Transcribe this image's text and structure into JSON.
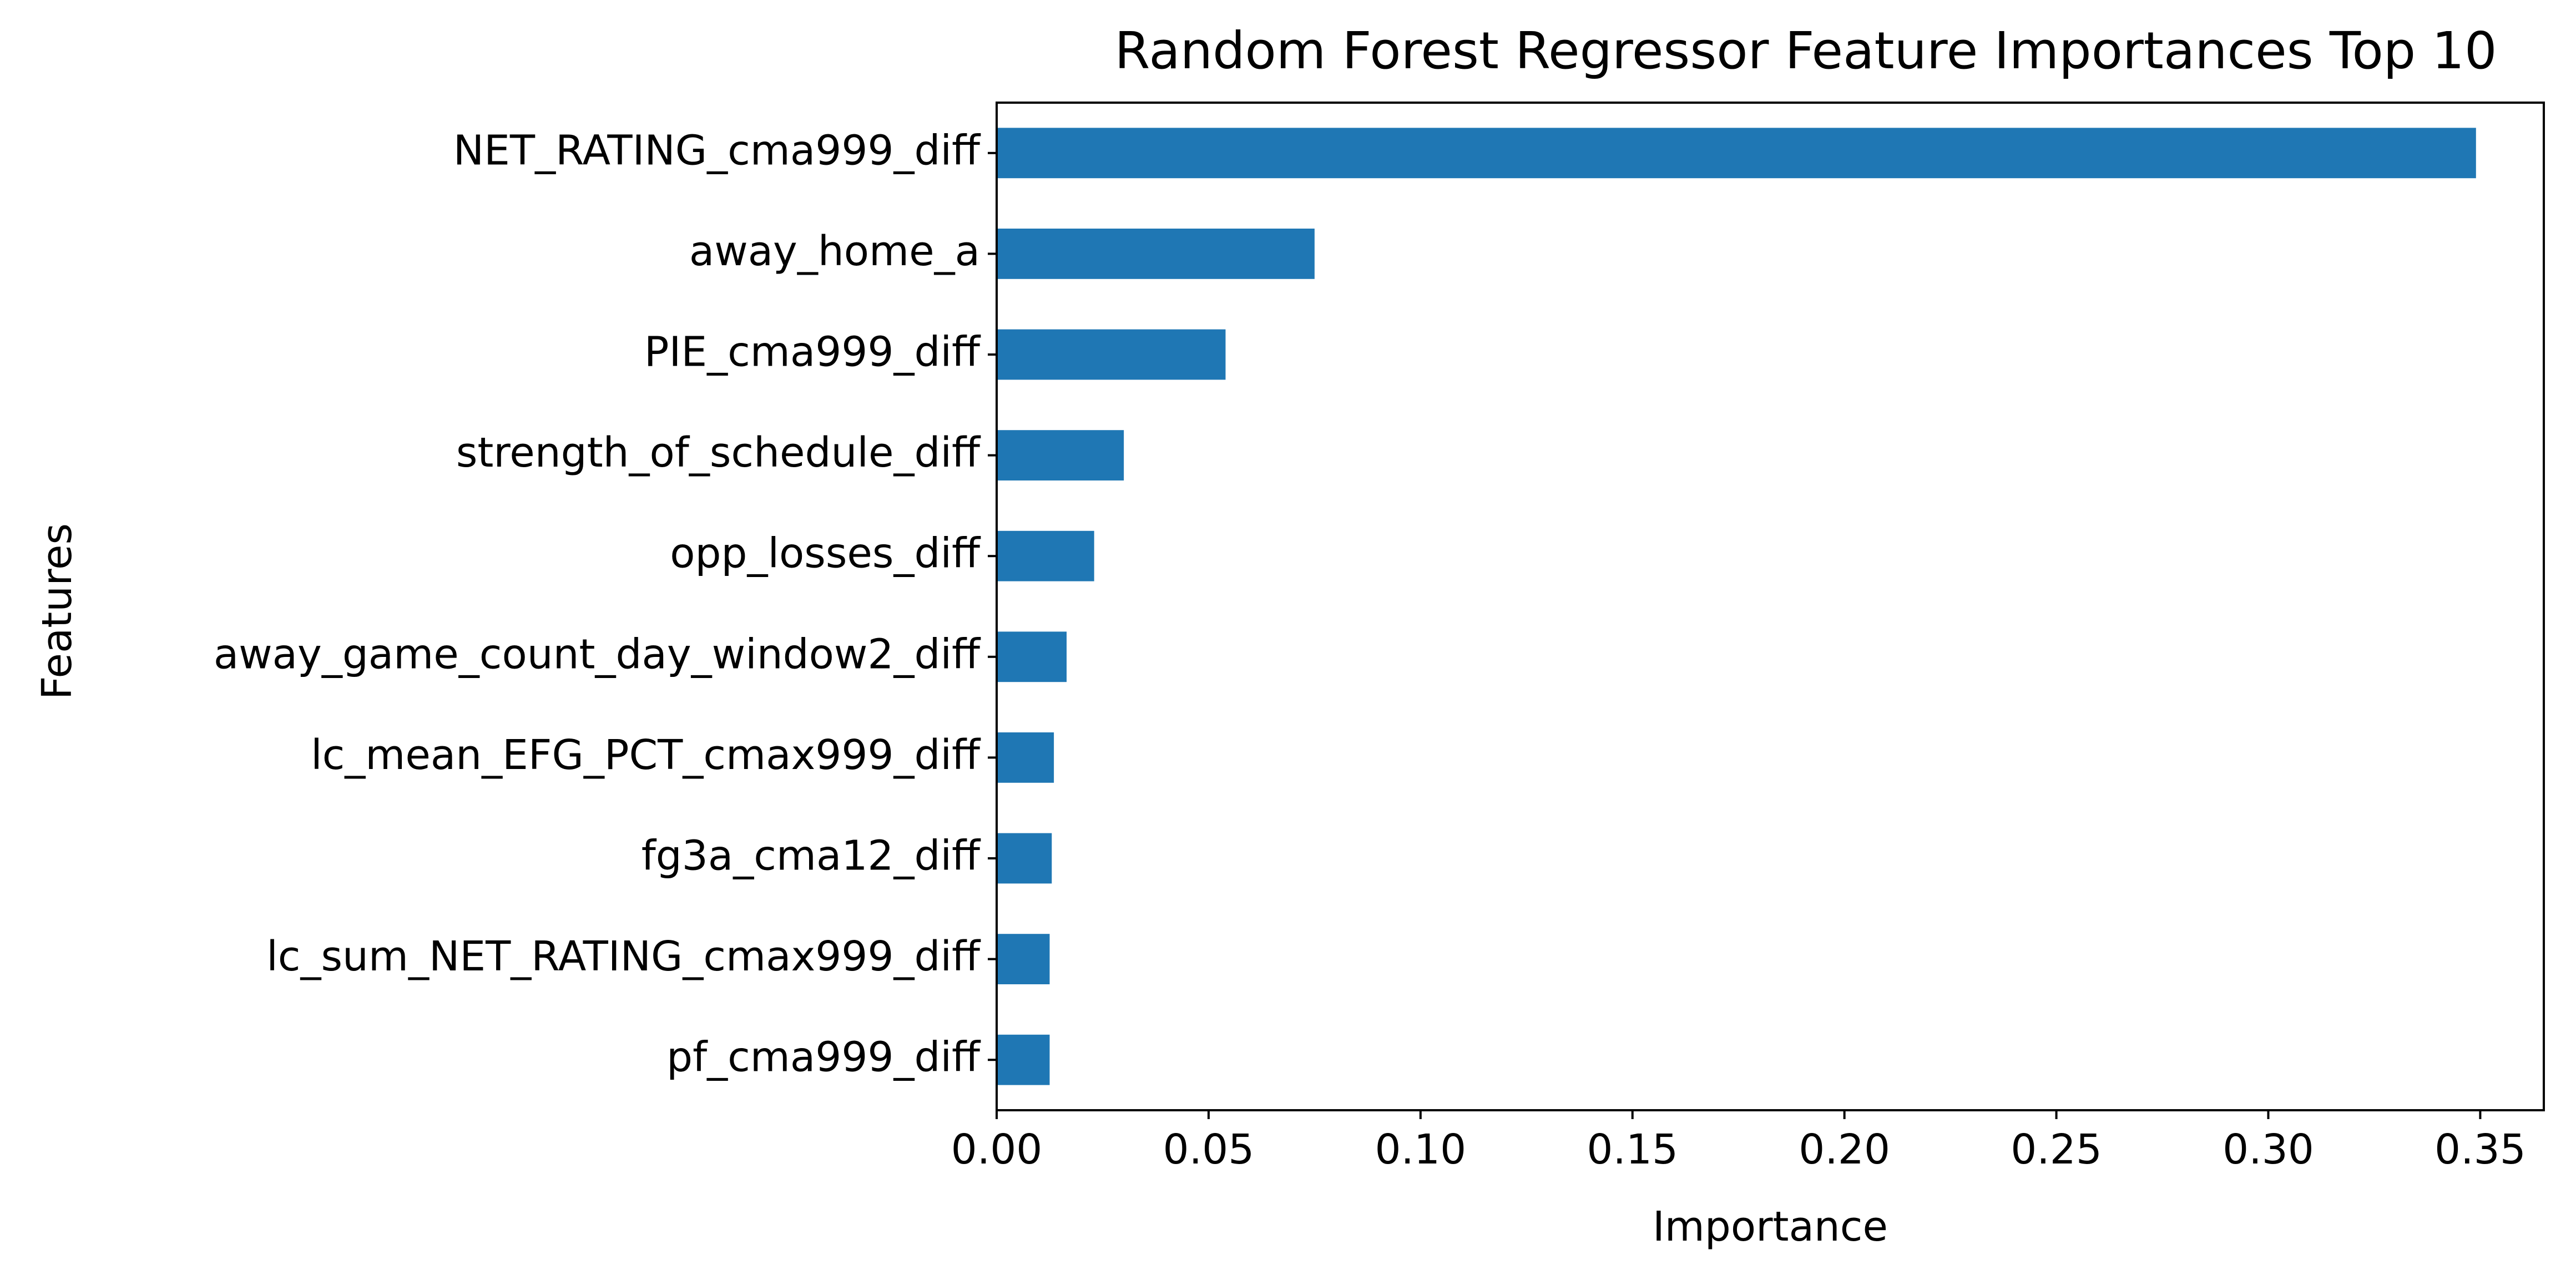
{
  "chart_data": {
    "type": "bar",
    "orientation": "horizontal",
    "title": "Random Forest Regressor Feature Importances Top 10",
    "xlabel": "Importance",
    "ylabel": "Features",
    "categories": [
      "NET_RATING_cma999_diff",
      "away_home_a",
      "PIE_cma999_diff",
      "strength_of_schedule_diff",
      "opp_losses_diff",
      "away_game_count_day_window2_diff",
      "lc_mean_EFG_PCT_cmax999_diff",
      "fg3a_cma12_diff",
      "lc_sum_NET_RATING_cmax999_diff",
      "pf_cma999_diff"
    ],
    "values": [
      0.349,
      0.075,
      0.054,
      0.03,
      0.023,
      0.0165,
      0.0135,
      0.013,
      0.0125,
      0.0125
    ],
    "xlim": [
      0,
      0.365
    ],
    "xticks": [
      "0.00",
      "0.05",
      "0.10",
      "0.15",
      "0.20",
      "0.25",
      "0.30",
      "0.35"
    ],
    "grid": false,
    "legend": "none",
    "bar_color": "#1f77b4"
  }
}
